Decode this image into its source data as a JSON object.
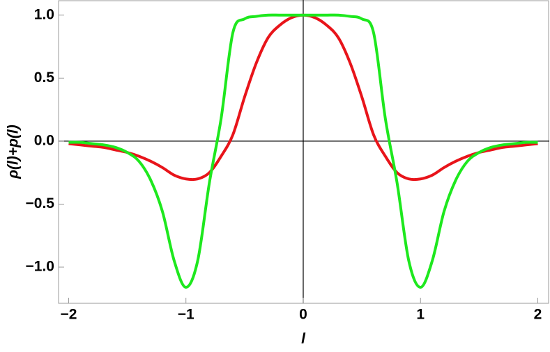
{
  "chart_data": {
    "type": "line",
    "xlabel": "l",
    "ylabel": "ρ(l)+p(l)",
    "x": [
      -2.0,
      -1.9,
      -1.8,
      -1.7,
      -1.6,
      -1.5,
      -1.4,
      -1.3,
      -1.2,
      -1.1,
      -1.0,
      -0.9,
      -0.8,
      -0.7,
      -0.6,
      -0.5,
      -0.4,
      -0.3,
      -0.2,
      -0.1,
      0.0,
      0.1,
      0.2,
      0.3,
      0.4,
      0.5,
      0.6,
      0.7,
      0.8,
      0.9,
      1.0,
      1.1,
      1.2,
      1.3,
      1.4,
      1.5,
      1.6,
      1.7,
      1.8,
      1.9,
      2.0
    ],
    "series": [
      {
        "color": "#e8141a",
        "values": [
          -0.02,
          -0.03,
          -0.04,
          -0.05,
          -0.07,
          -0.09,
          -0.12,
          -0.16,
          -0.21,
          -0.27,
          -0.3,
          -0.3,
          -0.25,
          -0.12,
          0.05,
          0.35,
          0.62,
          0.82,
          0.92,
          0.98,
          1.0,
          0.98,
          0.92,
          0.82,
          0.62,
          0.35,
          0.05,
          -0.12,
          -0.25,
          -0.3,
          -0.3,
          -0.27,
          -0.21,
          -0.16,
          -0.12,
          -0.09,
          -0.07,
          -0.05,
          -0.04,
          -0.03,
          -0.02
        ]
      },
      {
        "color": "#1ee81e",
        "values": [
          -0.01,
          -0.01,
          -0.02,
          -0.03,
          -0.05,
          -0.09,
          -0.16,
          -0.31,
          -0.56,
          -0.95,
          -1.16,
          -0.95,
          -0.33,
          0.18,
          0.86,
          0.97,
          0.99,
          1.0,
          1.0,
          1.0,
          1.0,
          1.0,
          1.0,
          1.0,
          0.99,
          0.97,
          0.86,
          0.18,
          -0.33,
          -0.95,
          -1.16,
          -0.95,
          -0.56,
          -0.31,
          -0.16,
          -0.09,
          -0.05,
          -0.03,
          -0.02,
          -0.01,
          -0.01
        ]
      }
    ],
    "xlim": [
      -2.086,
      2.098
    ],
    "ylim": [
      -1.287,
      1.12
    ],
    "xticks": [
      {
        "value": -2,
        "label": "−2"
      },
      {
        "value": -1,
        "label": "−1"
      },
      0,
      1,
      2
    ],
    "yticks": [
      {
        "value": 1,
        "label": "1.0"
      },
      {
        "value": 0.5,
        "label": "0.5"
      },
      {
        "value": 0,
        "label": "0.0"
      },
      {
        "value": -0.5,
        "label": "−0.5"
      },
      {
        "value": -1,
        "label": "−1.0"
      }
    ]
  }
}
